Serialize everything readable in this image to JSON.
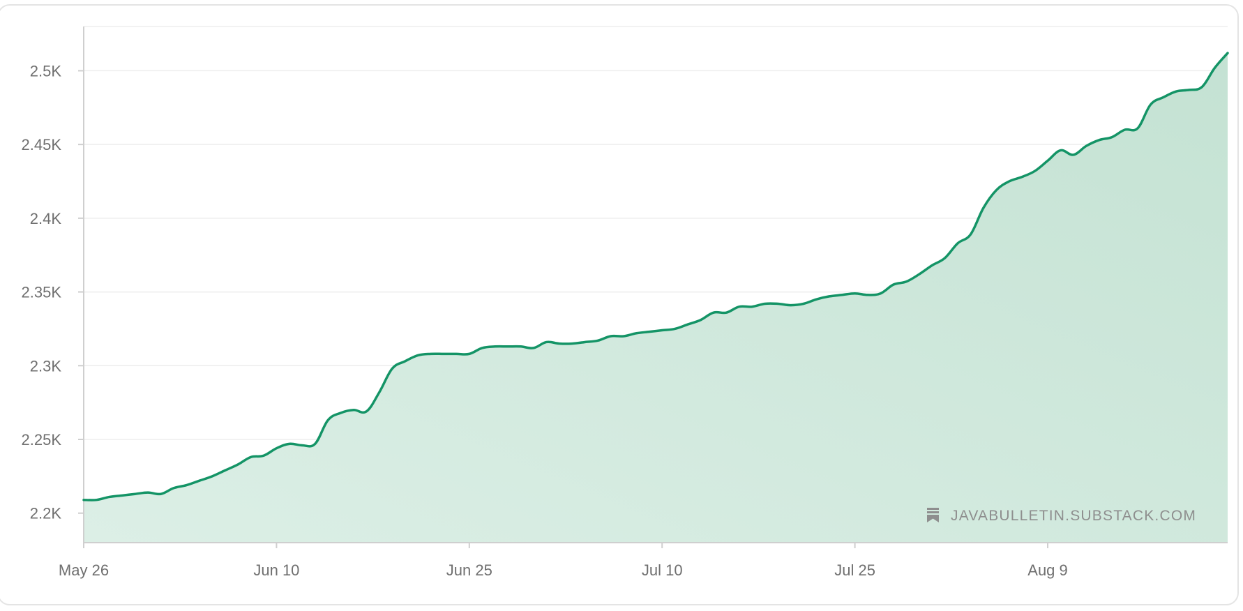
{
  "chart_data": {
    "type": "area",
    "title": "",
    "xlabel": "",
    "ylabel": "",
    "ylim": [
      2180,
      2530
    ],
    "yticks": [
      2200,
      2250,
      2300,
      2350,
      2400,
      2450,
      2500
    ],
    "ytick_labels": [
      "2.2K",
      "2.25K",
      "2.3K",
      "2.35K",
      "2.4K",
      "2.45K",
      "2.5K"
    ],
    "xtick_days": [
      0,
      15,
      30,
      45,
      60,
      75
    ],
    "xtick_labels": [
      "May 26",
      "Jun 10",
      "Jun 25",
      "Jul 10",
      "Jul 25",
      "Aug 9"
    ],
    "grid": true,
    "legend": "none",
    "colors": {
      "line": "#149466",
      "fill_top": "#c4e2d3",
      "fill_bottom": "#dcefe6",
      "grid": "#ededed",
      "axis": "#cfcfcf"
    },
    "series": [
      {
        "name": "",
        "x": [
          0,
          1,
          2,
          3,
          4,
          5,
          6,
          7,
          8,
          9,
          10,
          11,
          12,
          13,
          14,
          15,
          16,
          17,
          18,
          19,
          20,
          21,
          22,
          23,
          24,
          25,
          26,
          27,
          28,
          29,
          30,
          31,
          32,
          33,
          34,
          35,
          36,
          37,
          38,
          39,
          40,
          41,
          42,
          43,
          44,
          45,
          46,
          47,
          48,
          49,
          50,
          51,
          52,
          53,
          54,
          55,
          56,
          57,
          58,
          59,
          60,
          61,
          62,
          63,
          64,
          65,
          66,
          67,
          68,
          69,
          70,
          71,
          72,
          73,
          74,
          75,
          76,
          77,
          78,
          79,
          80,
          81,
          82,
          83,
          84,
          85,
          86,
          87,
          88,
          89
        ],
        "y": [
          2209,
          2209,
          2211,
          2212,
          2213,
          2214,
          2213,
          2217,
          2219,
          2222,
          2225,
          2229,
          2233,
          2238,
          2239,
          2244,
          2247,
          2246,
          2247,
          2263,
          2268,
          2270,
          2269,
          2282,
          2298,
          2303,
          2307,
          2308,
          2308,
          2308,
          2308,
          2312,
          2313,
          2313,
          2313,
          2312,
          2316,
          2315,
          2315,
          2316,
          2317,
          2320,
          2320,
          2322,
          2323,
          2324,
          2325,
          2328,
          2331,
          2336,
          2336,
          2340,
          2340,
          2342,
          2342,
          2341,
          2342,
          2345,
          2347,
          2348,
          2349,
          2348,
          2349,
          2355,
          2357,
          2362,
          2368,
          2373,
          2383,
          2389,
          2407,
          2419,
          2425,
          2428,
          2432,
          2439,
          2446,
          2443,
          2449,
          2453,
          2455,
          2460,
          2461,
          2477,
          2482,
          2486,
          2487,
          2489,
          2502,
          2512
        ]
      }
    ]
  },
  "watermark": {
    "icon": "bookmark-icon",
    "text": "JAVABULLETIN.SUBSTACK.COM"
  }
}
